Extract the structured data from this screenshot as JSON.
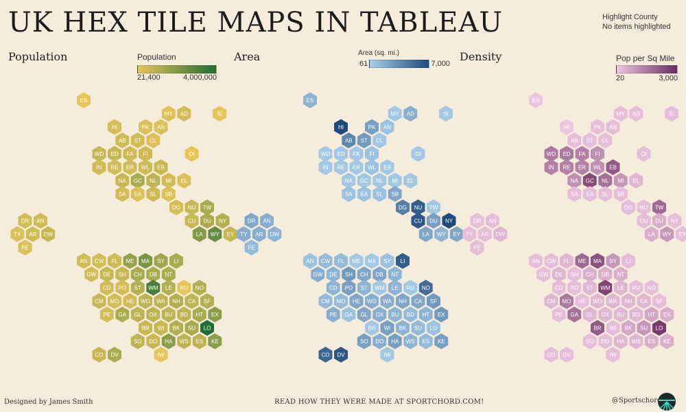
{
  "title": "UK HEX TILE MAPS IN TABLEAU",
  "highlight": {
    "label": "Highlight County",
    "status": "No items highlighted"
  },
  "panels": [
    {
      "key": "population",
      "title": "Population",
      "legend_title": "Population",
      "legend_min": "21,400",
      "legend_max": "4,000,000",
      "color_low": "#e6c55a",
      "color_high": "#1f6e35"
    },
    {
      "key": "area",
      "title": "Area",
      "legend_title": "Area (sq. mi.)",
      "legend_min": "61",
      "legend_max": "7,000",
      "color_low": "#a9cfe9",
      "color_high": "#1f4a7c"
    },
    {
      "key": "density",
      "title": "Density",
      "legend_title": "Pop per Sq Mile",
      "legend_min": "20",
      "legend_max": "3,000",
      "color_low": "#ecc6df",
      "color_high": "#6b2d5f"
    }
  ],
  "counties": [
    {
      "code": "ES",
      "col": 0,
      "row": 0,
      "pop": 0.0,
      "area": 0.2,
      "dens": 0.0
    },
    {
      "code": "MY",
      "col": 3,
      "row": 1,
      "pop": 0.05,
      "area": 0.05,
      "dens": 0.05
    },
    {
      "code": "AD",
      "col": 4,
      "row": 1,
      "pop": 0.1,
      "area": 0.25,
      "dens": 0.05
    },
    {
      "code": "SI",
      "col": 8,
      "row": 1,
      "pop": 0.0,
      "area": 0.05,
      "dens": 0.05
    },
    {
      "code": "HI",
      "col": 0,
      "row": 2,
      "pop": 0.08,
      "area": 1.0,
      "dens": 0.0
    },
    {
      "code": "PK",
      "col": 2,
      "row": 2,
      "pop": 0.05,
      "area": 0.35,
      "dens": 0.05
    },
    {
      "code": "AN",
      "col": 3,
      "row": 2,
      "pop": 0.05,
      "area": 0.1,
      "dens": 0.05
    },
    {
      "code": "AB",
      "col": 1,
      "row": 3,
      "pop": 0.12,
      "area": 0.55,
      "dens": 0.05
    },
    {
      "code": "ST",
      "col": 2,
      "row": 3,
      "pop": 0.1,
      "area": 0.4,
      "dens": 0.05
    },
    {
      "code": "CL",
      "col": 3,
      "row": 3,
      "pop": 0.05,
      "area": 0.05,
      "dens": 0.05
    },
    {
      "code": "WD",
      "col": 0,
      "row": 4,
      "pop": 0.15,
      "area": 0.05,
      "dens": 0.5
    },
    {
      "code": "ED",
      "col": 1,
      "row": 4,
      "pop": 0.15,
      "area": 0.05,
      "dens": 0.5
    },
    {
      "code": "FA",
      "col": 2,
      "row": 4,
      "pop": 0.12,
      "area": 0.05,
      "dens": 0.45
    },
    {
      "code": "FI",
      "col": 3,
      "row": 4,
      "pop": 0.12,
      "area": 0.1,
      "dens": 0.35
    },
    {
      "code": "OI",
      "col": 7,
      "row": 4,
      "pop": 0.0,
      "area": 0.05,
      "dens": 0.05
    },
    {
      "code": "IN",
      "col": 0,
      "row": 5,
      "pop": 0.12,
      "area": 0.05,
      "dens": 0.45
    },
    {
      "code": "RE",
      "col": 1,
      "row": 5,
      "pop": 0.1,
      "area": 0.05,
      "dens": 0.45
    },
    {
      "code": "ER",
      "col": 2,
      "row": 5,
      "pop": 0.1,
      "area": 0.05,
      "dens": 0.45
    },
    {
      "code": "WL",
      "col": 3,
      "row": 5,
      "pop": 0.12,
      "area": 0.1,
      "dens": 0.35
    },
    {
      "code": "EB",
      "col": 4,
      "row": 5,
      "pop": 0.15,
      "area": 0.05,
      "dens": 0.7
    },
    {
      "code": "NA",
      "col": 1,
      "row": 6,
      "pop": 0.15,
      "area": 0.05,
      "dens": 0.35
    },
    {
      "code": "GC",
      "col": 2,
      "row": 6,
      "pop": 0.3,
      "area": 0.05,
      "dens": 0.8
    },
    {
      "code": "NL",
      "col": 3,
      "row": 6,
      "pop": 0.2,
      "area": 0.05,
      "dens": 0.55
    },
    {
      "code": "MI",
      "col": 4,
      "row": 6,
      "pop": 0.1,
      "area": 0.05,
      "dens": 0.3
    },
    {
      "code": "EL",
      "col": 5,
      "row": 6,
      "pop": 0.05,
      "area": 0.05,
      "dens": 0.1
    },
    {
      "code": "SA",
      "col": 1,
      "row": 7,
      "pop": 0.1,
      "area": 0.1,
      "dens": 0.05
    },
    {
      "code": "EA",
      "col": 2,
      "row": 7,
      "pop": 0.05,
      "area": 0.1,
      "dens": 0.05
    },
    {
      "code": "SL",
      "col": 3,
      "row": 7,
      "pop": 0.12,
      "area": 0.1,
      "dens": 0.05
    },
    {
      "code": "SB",
      "col": 4,
      "row": 7,
      "pop": 0.05,
      "area": 0.3,
      "dens": 0.05
    },
    {
      "code": "DG",
      "col": 3,
      "row": 8,
      "pop": 0.08,
      "area": 0.6,
      "dens": 0.05
    },
    {
      "code": "NU",
      "col": 4,
      "row": 8,
      "pop": 0.15,
      "area": 0.85,
      "dens": 0.05
    },
    {
      "code": "TW",
      "col": 5,
      "row": 8,
      "pop": 0.3,
      "area": 0.05,
      "dens": 0.6
    },
    {
      "code": "DR",
      "col": 0,
      "row": 9,
      "pop": 0.1,
      "area": 0.3,
      "dens": 0.05
    },
    {
      "code": "AN",
      "col": 1,
      "row": 9,
      "pop": 0.1,
      "area": 0.25,
      "dens": 0.05
    },
    {
      "code": "CU",
      "col": 4,
      "row": 9,
      "pop": 0.15,
      "area": 0.9,
      "dens": 0.05
    },
    {
      "code": "DU",
      "col": 5,
      "row": 9,
      "pop": 0.3,
      "area": 0.35,
      "dens": 0.15
    },
    {
      "code": "NY",
      "col": 6,
      "row": 9,
      "pop": 0.25,
      "area": 1.0,
      "dens": 0.05
    },
    {
      "code": "TY",
      "col": 0,
      "row": 10,
      "pop": 0.05,
      "area": 0.25,
      "dens": 0.05
    },
    {
      "code": "AR",
      "col": 1,
      "row": 10,
      "pop": 0.1,
      "area": 0.25,
      "dens": 0.05
    },
    {
      "code": "DW",
      "col": 2,
      "row": 10,
      "pop": 0.15,
      "area": 0.2,
      "dens": 0.1
    },
    {
      "code": "LA",
      "col": 4,
      "row": 10,
      "pop": 0.5,
      "area": 0.3,
      "dens": 0.15
    },
    {
      "code": "WY",
      "col": 5,
      "row": 10,
      "pop": 0.65,
      "area": 0.2,
      "dens": 0.3
    },
    {
      "code": "EY",
      "col": 6,
      "row": 10,
      "pop": 0.15,
      "area": 0.3,
      "dens": 0.05
    },
    {
      "code": "FE",
      "col": 0,
      "row": 11,
      "pop": 0.05,
      "area": 0.15,
      "dens": 0.05
    },
    {
      "code": "AN",
      "col": 0,
      "row": 12,
      "pop": 0.1,
      "area": 0.1,
      "dens": 0.05
    },
    {
      "code": "CW",
      "col": 1,
      "row": 12,
      "pop": 0.1,
      "area": 0.15,
      "dens": 0.05
    },
    {
      "code": "FL",
      "col": 2,
      "row": 12,
      "pop": 0.12,
      "area": 0.15,
      "dens": 0.1
    },
    {
      "code": "ME",
      "col": 3,
      "row": 12,
      "pop": 0.4,
      "area": 0.05,
      "dens": 0.6
    },
    {
      "code": "MA",
      "col": 4,
      "row": 12,
      "pop": 0.55,
      "area": 0.05,
      "dens": 0.75
    },
    {
      "code": "SY",
      "col": 5,
      "row": 12,
      "pop": 0.35,
      "area": 0.1,
      "dens": 0.3
    },
    {
      "code": "LI",
      "col": 6,
      "row": 12,
      "pop": 0.3,
      "area": 0.85,
      "dens": 0.05
    },
    {
      "code": "GW",
      "col": 0,
      "row": 13,
      "pop": 0.1,
      "area": 0.25,
      "dens": 0.05
    },
    {
      "code": "DE",
      "col": 1,
      "row": 13,
      "pop": 0.15,
      "area": 0.2,
      "dens": 0.1
    },
    {
      "code": "SH",
      "col": 2,
      "row": 13,
      "pop": 0.15,
      "area": 0.4,
      "dens": 0.05
    },
    {
      "code": "CH",
      "col": 3,
      "row": 13,
      "pop": 0.3,
      "area": 0.3,
      "dens": 0.15
    },
    {
      "code": "DB",
      "col": 4,
      "row": 13,
      "pop": 0.3,
      "area": 0.3,
      "dens": 0.15
    },
    {
      "code": "NT",
      "col": 5,
      "row": 13,
      "pop": 0.3,
      "area": 0.2,
      "dens": 0.15
    },
    {
      "code": "CD",
      "col": 1,
      "row": 14,
      "pop": 0.1,
      "area": 0.2,
      "dens": 0.05
    },
    {
      "code": "PO",
      "col": 2,
      "row": 14,
      "pop": 0.08,
      "area": 0.35,
      "dens": 0.05
    },
    {
      "code": "ST",
      "col": 3,
      "row": 14,
      "pop": 0.25,
      "area": 0.2,
      "dens": 0.1
    },
    {
      "code": "WM",
      "col": 4,
      "row": 14,
      "pop": 0.8,
      "area": 0.05,
      "dens": 0.85
    },
    {
      "code": "LE",
      "col": 5,
      "row": 14,
      "pop": 0.25,
      "area": 0.2,
      "dens": 0.1
    },
    {
      "code": "RU",
      "col": 6,
      "row": 14,
      "pop": 0.0,
      "area": 0.05,
      "dens": 0.05
    },
    {
      "code": "NO",
      "col": 7,
      "row": 14,
      "pop": 0.25,
      "area": 0.75,
      "dens": 0.05
    },
    {
      "code": "CM",
      "col": 1,
      "row": 15,
      "pop": 0.15,
      "area": 0.15,
      "dens": 0.1
    },
    {
      "code": "MO",
      "col": 2,
      "row": 15,
      "pop": 0.1,
      "area": 0.15,
      "dens": 0.5
    },
    {
      "code": "HE",
      "col": 3,
      "row": 15,
      "pop": 0.1,
      "area": 0.3,
      "dens": 0.05
    },
    {
      "code": "WO",
      "col": 4,
      "row": 15,
      "pop": 0.2,
      "area": 0.25,
      "dens": 0.1
    },
    {
      "code": "WA",
      "col": 5,
      "row": 15,
      "pop": 0.2,
      "area": 0.25,
      "dens": 0.1
    },
    {
      "code": "NH",
      "col": 6,
      "row": 15,
      "pop": 0.25,
      "area": 0.3,
      "dens": 0.1
    },
    {
      "code": "CA",
      "col": 7,
      "row": 15,
      "pop": 0.2,
      "area": 0.3,
      "dens": 0.1
    },
    {
      "code": "SF",
      "col": 8,
      "row": 15,
      "pop": 0.25,
      "area": 0.4,
      "dens": 0.05
    },
    {
      "code": "PE",
      "col": 1,
      "row": 16,
      "pop": 0.1,
      "area": 0.25,
      "dens": 0.05
    },
    {
      "code": "GA",
      "col": 2,
      "row": 16,
      "pop": 0.3,
      "area": 0.1,
      "dens": 0.55
    },
    {
      "code": "GL",
      "col": 3,
      "row": 16,
      "pop": 0.2,
      "area": 0.3,
      "dens": 0.1
    },
    {
      "code": "OX",
      "col": 4,
      "row": 16,
      "pop": 0.2,
      "area": 0.25,
      "dens": 0.1
    },
    {
      "code": "BU",
      "col": 5,
      "row": 16,
      "pop": 0.2,
      "area": 0.2,
      "dens": 0.1
    },
    {
      "code": "BD",
      "col": 6,
      "row": 16,
      "pop": 0.2,
      "area": 0.15,
      "dens": 0.1
    },
    {
      "code": "HT",
      "col": 7,
      "row": 16,
      "pop": 0.3,
      "area": 0.2,
      "dens": 0.2
    },
    {
      "code": "EX",
      "col": 8,
      "row": 16,
      "pop": 0.45,
      "area": 0.4,
      "dens": 0.15
    },
    {
      "code": "BR",
      "col": 2,
      "row": 17,
      "pop": 0.15,
      "area": 0.05,
      "dens": 0.7
    },
    {
      "code": "WI",
      "col": 3,
      "row": 17,
      "pop": 0.15,
      "area": 0.35,
      "dens": 0.05
    },
    {
      "code": "BK",
      "col": 4,
      "row": 17,
      "pop": 0.25,
      "area": 0.2,
      "dens": 0.2
    },
    {
      "code": "SU",
      "col": 5,
      "row": 17,
      "pop": 0.3,
      "area": 0.15,
      "dens": 0.3
    },
    {
      "code": "LO",
      "col": 6,
      "row": 17,
      "pop": 1.0,
      "area": 0.1,
      "dens": 0.9
    },
    {
      "code": "SO",
      "col": 2,
      "row": 18,
      "pop": 0.2,
      "area": 0.35,
      "dens": 0.05
    },
    {
      "code": "DO",
      "col": 3,
      "row": 18,
      "pop": 0.15,
      "area": 0.25,
      "dens": 0.05
    },
    {
      "code": "HA",
      "col": 4,
      "row": 18,
      "pop": 0.45,
      "area": 0.35,
      "dens": 0.1
    },
    {
      "code": "WS",
      "col": 5,
      "row": 18,
      "pop": 0.2,
      "area": 0.2,
      "dens": 0.1
    },
    {
      "code": "ES",
      "col": 6,
      "row": 18,
      "pop": 0.2,
      "area": 0.15,
      "dens": 0.15
    },
    {
      "code": "KE",
      "col": 7,
      "row": 18,
      "pop": 0.45,
      "area": 0.35,
      "dens": 0.15
    },
    {
      "code": "CO",
      "col": 1,
      "row": 19,
      "pop": 0.15,
      "area": 0.8,
      "dens": 0.05
    },
    {
      "code": "DV",
      "col": 2,
      "row": 19,
      "pop": 0.3,
      "area": 0.9,
      "dens": 0.05
    },
    {
      "code": "IW",
      "col": 5,
      "row": 19,
      "pop": 0.0,
      "area": 0.05,
      "dens": 0.05
    }
  ],
  "footer": {
    "designer": "Designed by James Smith",
    "link": "READ HOW THEY WERE MADE AT SPORTCHORD.COM!",
    "handle": "@Sportschord"
  }
}
